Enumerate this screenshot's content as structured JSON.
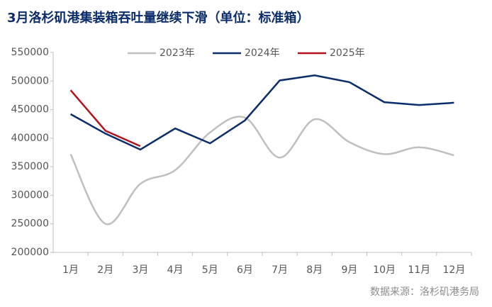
{
  "chart_data": {
    "type": "line",
    "title": "3月洛杉矶港集装箱吞吐量继续下滑（单位：标准箱）",
    "source": "数据来源：洛杉矶港务局",
    "categories": [
      "1月",
      "2月",
      "3月",
      "4月",
      "5月",
      "6月",
      "7月",
      "8月",
      "9月",
      "10月",
      "11月",
      "12月"
    ],
    "series": [
      {
        "name": "2023年",
        "color": "#bfbfbf",
        "smooth": true,
        "values": [
          372000,
          250000,
          320000,
          344000,
          410000,
          436000,
          366000,
          433000,
          393000,
          372000,
          384000,
          370000
        ]
      },
      {
        "name": "2024年",
        "color": "#0b2d6b",
        "smooth": false,
        "values": [
          442000,
          408000,
          380000,
          417000,
          391000,
          431000,
          501000,
          510000,
          498000,
          463000,
          458000,
          462000
        ]
      },
      {
        "name": "2025年",
        "color": "#b3111b",
        "smooth": false,
        "values": [
          484000,
          413000,
          386000,
          null,
          null,
          null,
          null,
          null,
          null,
          null,
          null,
          null
        ]
      }
    ],
    "ylim": [
      200000,
      550000
    ],
    "yticks": [
      200000,
      250000,
      300000,
      350000,
      400000,
      450000,
      500000,
      550000
    ],
    "grid": false,
    "legend": "top"
  }
}
